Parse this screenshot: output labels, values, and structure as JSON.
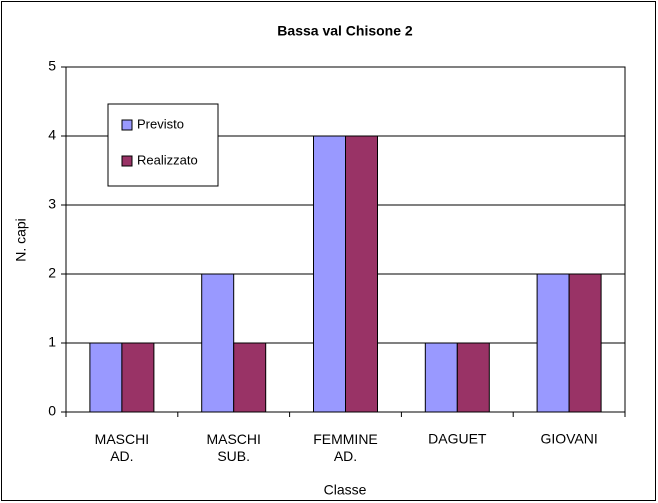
{
  "chart_data": {
    "type": "bar",
    "title": "Bassa val Chisone 2",
    "x_label": "Classe",
    "y_label": "N. capi",
    "categories": [
      "MASCHI AD.",
      "MASCHI SUB.",
      "FEMMINE AD.",
      "DAGUET",
      "GIOVANI"
    ],
    "series": [
      {
        "name": "Previsto",
        "color": "#9999ff",
        "values": [
          1,
          2,
          4,
          1,
          2
        ]
      },
      {
        "name": "Realizzato",
        "color": "#993366",
        "values": [
          1,
          1,
          4,
          1,
          2
        ]
      }
    ],
    "ylim": [
      0,
      5
    ],
    "yticks": [
      0,
      1,
      2,
      3,
      4,
      5
    ],
    "grid": true,
    "legend": "upper left"
  }
}
